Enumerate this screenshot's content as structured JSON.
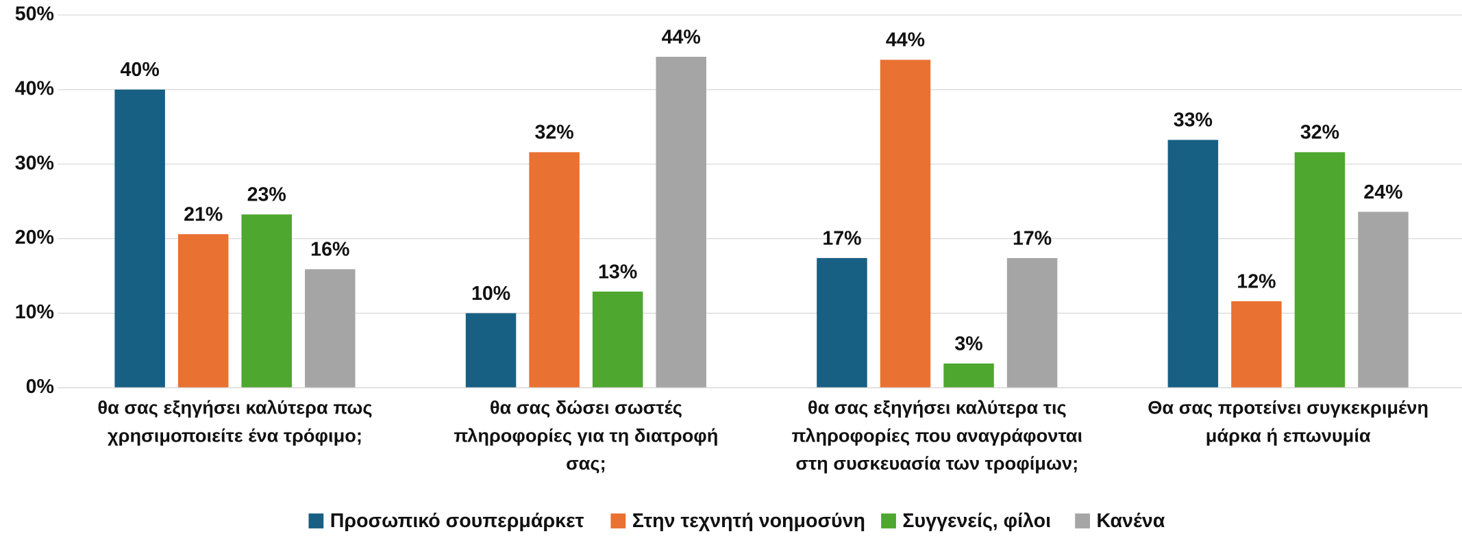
{
  "chart_data": {
    "type": "bar",
    "categories": [
      "θα σας εξηγήσει καλύτερα πως\nχρησιμοποιείτε ένα τρόφιμο;",
      "θα σας δώσει σωστές\nπληροφορίες για τη διατροφή\nσας;",
      "θα σας εξηγήσει καλύτερα τις\nπληροφορίες που αναγράφονται\nστη συσκευασία των τροφίμων;",
      "Θα σας προτείνει συγκεκριμένη\nμάρκα ή επωνυμία"
    ],
    "series": [
      {
        "name": "Προσωπικό σουπερμάρκετ",
        "color": "#185f84",
        "values": [
          40,
          10,
          17.4,
          33.25
        ],
        "value_labels": [
          "40%",
          "10%",
          "17%",
          "33%"
        ]
      },
      {
        "name": "Στην τεχνητή νοημοσύνη",
        "color": "#e97132",
        "values": [
          20.6,
          31.6,
          44,
          11.6
        ],
        "value_labels": [
          "21%",
          "32%",
          "44%",
          "12%"
        ]
      },
      {
        "name": "Συγγενείς, φίλοι",
        "color": "#4ea72e",
        "values": [
          23.25,
          12.9,
          3.25,
          31.6
        ],
        "value_labels": [
          "23%",
          "13%",
          "3%",
          "32%"
        ]
      },
      {
        "name": "Κανένα",
        "color": "#a5a5a5",
        "values": [
          15.9,
          44.4,
          17.4,
          23.6
        ],
        "value_labels": [
          "16%",
          "44%",
          "17%",
          "24%"
        ]
      }
    ],
    "ylim": [
      0,
      50
    ],
    "yticks": [
      {
        "value": 0,
        "label": "0%"
      },
      {
        "value": 10,
        "label": "10%"
      },
      {
        "value": 20,
        "label": "20%"
      },
      {
        "value": 30,
        "label": "30%"
      },
      {
        "value": 40,
        "label": "40%"
      },
      {
        "value": 50,
        "label": "50%"
      }
    ],
    "grid": true,
    "legend": "bottom"
  }
}
